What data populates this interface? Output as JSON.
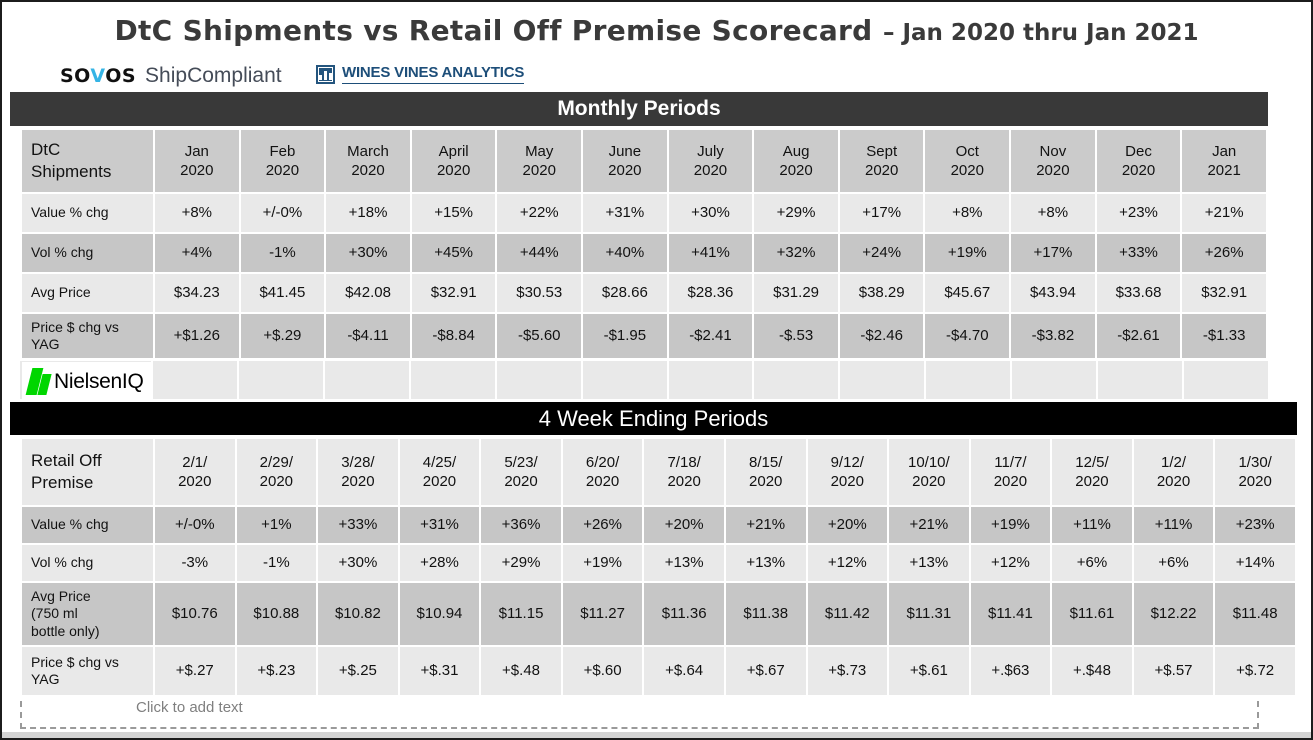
{
  "title": {
    "main": "DtC Shipments vs Retail Off Premise Scorecard",
    "range": "– Jan 2020 thru Jan 2021"
  },
  "logos": {
    "sovos": {
      "pre": "SO",
      "v": "V",
      "post": "OS",
      "product": "ShipCompliant"
    },
    "wines_vines": {
      "label": "WINES VINES ANALYTICS"
    },
    "nielsen": {
      "label": "NielsenIQ"
    }
  },
  "placeholder_text": "Click to add text",
  "colors": {
    "banner1_bg": "#393939",
    "banner2_bg": "#000000",
    "header_cell": "#cbcbcb",
    "row_dark": "#c6c6c6",
    "row_light": "#e9e9e9",
    "title_text": "#3a3a3a",
    "sovos_accent": "#35b4e5",
    "wva_blue": "#1d4e79",
    "nielsen_green": "#00d600"
  },
  "tables": [
    {
      "banner": "Monthly Periods",
      "corner_label_lines": [
        "DtC",
        "Shipments"
      ],
      "header_shade": "header",
      "columns": [
        [
          "Jan",
          "2020"
        ],
        [
          "Feb",
          "2020"
        ],
        [
          "March",
          "2020"
        ],
        [
          "April",
          "2020"
        ],
        [
          "May",
          "2020"
        ],
        [
          "June",
          "2020"
        ],
        [
          "July",
          "2020"
        ],
        [
          "Aug",
          "2020"
        ],
        [
          "Sept",
          "2020"
        ],
        [
          "Oct",
          "2020"
        ],
        [
          "Nov",
          "2020"
        ],
        [
          "Dec",
          "2020"
        ],
        [
          "Jan",
          "2021"
        ]
      ],
      "rows": [
        {
          "label_lines": [
            "Value % chg"
          ],
          "shade": "light",
          "values": [
            "+8%",
            "+/-0%",
            "+18%",
            "+15%",
            "+22%",
            "+31%",
            "+30%",
            "+29%",
            "+17%",
            "+8%",
            "+8%",
            "+23%",
            "+21%"
          ]
        },
        {
          "label_lines": [
            "Vol % chg"
          ],
          "shade": "dark",
          "values": [
            "+4%",
            "-1%",
            "+30%",
            "+45%",
            "+44%",
            "+40%",
            "+41%",
            "+32%",
            "+24%",
            "+19%",
            "+17%",
            "+33%",
            "+26%"
          ]
        },
        {
          "label_lines": [
            "Avg Price"
          ],
          "shade": "light",
          "values": [
            "$34.23",
            "$41.45",
            "$42.08",
            "$32.91",
            "$30.53",
            "$28.66",
            "$28.36",
            "$31.29",
            "$38.29",
            "$45.67",
            "$43.94",
            "$33.68",
            "$32.91"
          ]
        },
        {
          "label_lines": [
            "Price $ chg vs",
            "YAG"
          ],
          "shade": "dark",
          "values": [
            "+$1.26",
            "+$.29",
            "-$4.11",
            "-$8.84",
            "-$5.60",
            "-$1.95",
            "-$2.41",
            "-$.53",
            "-$2.46",
            "-$4.70",
            "-$3.82",
            "-$2.61",
            "-$1.33"
          ]
        }
      ]
    },
    {
      "banner": "4 Week Ending Periods",
      "corner_label_lines": [
        "Retail Off",
        "Premise"
      ],
      "header_shade": "light",
      "columns": [
        [
          "2/1/",
          "2020"
        ],
        [
          "2/29/",
          "2020"
        ],
        [
          "3/28/",
          "2020"
        ],
        [
          "4/25/",
          "2020"
        ],
        [
          "5/23/",
          "2020"
        ],
        [
          "6/20/",
          "2020"
        ],
        [
          "7/18/",
          "2020"
        ],
        [
          "8/15/",
          "2020"
        ],
        [
          "9/12/",
          "2020"
        ],
        [
          "10/10/",
          "2020"
        ],
        [
          "11/7/",
          "2020"
        ],
        [
          "12/5/",
          "2020"
        ],
        [
          "1/2/",
          "2020"
        ],
        [
          "1/30/",
          "2020"
        ]
      ],
      "rows": [
        {
          "label_lines": [
            "Value % chg"
          ],
          "shade": "dark",
          "values": [
            "+/-0%",
            "+1%",
            "+33%",
            "+31%",
            "+36%",
            "+26%",
            "+20%",
            "+21%",
            "+20%",
            "+21%",
            "+19%",
            "+11%",
            "+11%",
            "+23%"
          ]
        },
        {
          "label_lines": [
            "Vol % chg"
          ],
          "shade": "light",
          "values": [
            "-3%",
            "-1%",
            "+30%",
            "+28%",
            "+29%",
            "+19%",
            "+13%",
            "+13%",
            "+12%",
            "+13%",
            "+12%",
            "+6%",
            "+6%",
            "+14%"
          ]
        },
        {
          "label_lines": [
            "Avg Price",
            "(750 ml",
            "bottle only)"
          ],
          "shade": "dark",
          "values": [
            "$10.76",
            "$10.88",
            "$10.82",
            "$10.94",
            "$11.15",
            "$11.27",
            "$11.36",
            "$11.38",
            "$11.42",
            "$11.31",
            "$11.41",
            "$11.61",
            "$12.22",
            "$11.48"
          ]
        },
        {
          "label_lines": [
            "Price $ chg vs",
            "YAG"
          ],
          "shade": "light",
          "values": [
            "+$.27",
            "+$.23",
            "+$.25",
            "+$.31",
            "+$.48",
            "+$.60",
            "+$.64",
            "+$.67",
            "+$.73",
            "+$.61",
            "+.$63",
            "+.$48",
            "+$.57",
            "+$.72"
          ]
        }
      ]
    }
  ]
}
